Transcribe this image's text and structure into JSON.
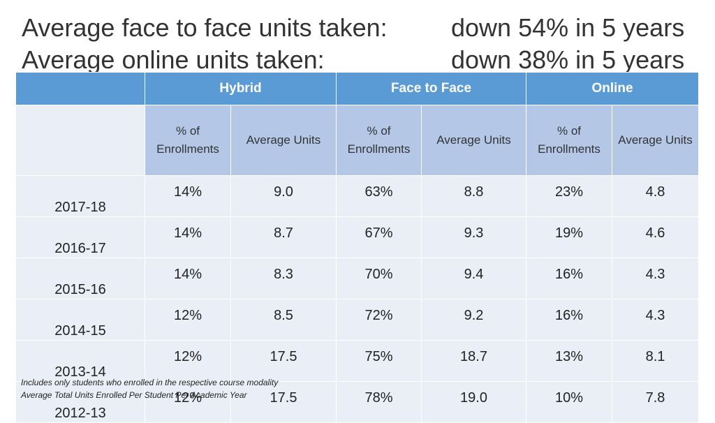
{
  "title": {
    "line1_left": "Average face to face units taken:",
    "line1_right": "down 54% in 5 years",
    "line2_left": "Average online units taken:",
    "line2_right": "down 38% in 5 years"
  },
  "table": {
    "groups": [
      "Hybrid",
      "Face to Face",
      "Online"
    ],
    "subheaders": {
      "pct_line1": "% of",
      "pct_line2": "Enrollments",
      "avg": "Average Units"
    },
    "rows": [
      {
        "year": "2017-18",
        "cells": [
          "14%",
          "9.0",
          "63%",
          "8.8",
          "23%",
          "4.8"
        ]
      },
      {
        "year": "2016-17",
        "cells": [
          "14%",
          "8.7",
          "67%",
          "9.3",
          "19%",
          "4.6"
        ]
      },
      {
        "year": "2015-16",
        "cells": [
          "14%",
          "8.3",
          "70%",
          "9.4",
          "16%",
          "4.3"
        ]
      },
      {
        "year": "2014-15",
        "cells": [
          "12%",
          "8.5",
          "72%",
          "9.2",
          "16%",
          "4.3"
        ]
      },
      {
        "year": "2013-14",
        "cells": [
          "12%",
          "17.5",
          "75%",
          "18.7",
          "13%",
          "8.1"
        ]
      },
      {
        "year": "2012-13",
        "cells": [
          "12%",
          "17.5",
          "78%",
          "19.0",
          "10%",
          "7.8"
        ]
      }
    ]
  },
  "footnotes": [
    "Includes only students who enrolled in the respective course modality",
    "Average Total Units Enrolled Per Student Per Academic Year"
  ]
}
